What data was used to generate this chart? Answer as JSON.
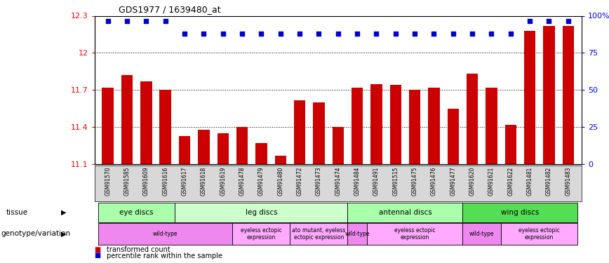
{
  "title": "GDS1977 / 1639480_at",
  "samples": [
    "GSM91570",
    "GSM91585",
    "GSM91609",
    "GSM91616",
    "GSM91617",
    "GSM91618",
    "GSM91619",
    "GSM91478",
    "GSM91479",
    "GSM91480",
    "GSM91472",
    "GSM91473",
    "GSM91474",
    "GSM91484",
    "GSM91491",
    "GSM91515",
    "GSM91475",
    "GSM91476",
    "GSM91477",
    "GSM91620",
    "GSM91621",
    "GSM91622",
    "GSM91481",
    "GSM91482",
    "GSM91483"
  ],
  "bar_values": [
    11.72,
    11.82,
    11.77,
    11.7,
    11.33,
    11.38,
    11.35,
    11.4,
    11.27,
    11.17,
    11.62,
    11.6,
    11.4,
    11.72,
    11.75,
    11.74,
    11.7,
    11.72,
    11.55,
    11.83,
    11.72,
    11.42,
    12.18,
    12.22,
    12.22
  ],
  "dot_high": [
    1,
    1,
    1,
    1,
    0,
    0,
    0,
    0,
    0,
    0,
    0,
    0,
    0,
    0,
    0,
    0,
    0,
    0,
    0,
    0,
    0,
    0,
    1,
    1,
    1
  ],
  "ymin": 11.1,
  "ymax": 12.3,
  "yticks": [
    11.1,
    11.4,
    11.7,
    12.0,
    12.3
  ],
  "ytick_labels": [
    "11.1",
    "11.4",
    "11.7",
    "12",
    "12.3"
  ],
  "right_yticks": [
    0,
    25,
    50,
    75,
    100
  ],
  "right_ytick_labels": [
    "0",
    "25",
    "50",
    "75",
    "100%"
  ],
  "bar_color": "#cc0000",
  "dot_color": "#0000cc",
  "tissue_groups": [
    {
      "label": "eye discs",
      "start": 0,
      "end": 3,
      "color": "#aaffaa"
    },
    {
      "label": "leg discs",
      "start": 4,
      "end": 12,
      "color": "#ccffcc"
    },
    {
      "label": "antennal discs",
      "start": 13,
      "end": 18,
      "color": "#aaffaa"
    },
    {
      "label": "wing discs",
      "start": 19,
      "end": 24,
      "color": "#55dd55"
    }
  ],
  "genotype_groups": [
    {
      "label": "wild-type",
      "start": 0,
      "end": 6,
      "color": "#ee88ee"
    },
    {
      "label": "eyeless ectopic\nexpression",
      "start": 7,
      "end": 9,
      "color": "#ffaaff"
    },
    {
      "label": "ato mutant, eyeless\nectopic expression",
      "start": 10,
      "end": 12,
      "color": "#ffaaff"
    },
    {
      "label": "wild-type",
      "start": 13,
      "end": 13,
      "color": "#ee88ee"
    },
    {
      "label": "eyeless ectopic\nexpression",
      "start": 14,
      "end": 18,
      "color": "#ffaaff"
    },
    {
      "label": "wild-type",
      "start": 19,
      "end": 20,
      "color": "#ee88ee"
    },
    {
      "label": "eyeless ectopic\nexpression",
      "start": 21,
      "end": 24,
      "color": "#ffaaff"
    }
  ]
}
